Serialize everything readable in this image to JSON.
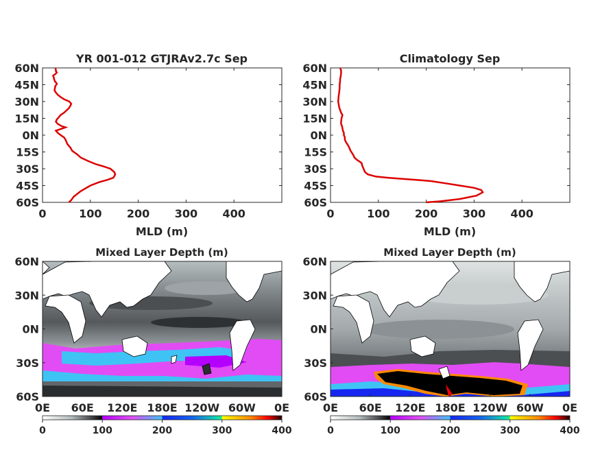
{
  "chart_data": [
    {
      "type": "line",
      "title": "YR 001-012 GTJRAv2.7c Sep",
      "xlabel": "MLD (m)",
      "ylabel": "",
      "xlim": [
        0,
        500
      ],
      "ylim": [
        -60,
        60
      ],
      "x_ticks": [
        "0",
        "100",
        "200",
        "300",
        "400"
      ],
      "y_ticks": [
        "60N",
        "45N",
        "30N",
        "15N",
        "0N",
        "15S",
        "30S",
        "45S",
        "60S"
      ],
      "color": "#dd0000",
      "series": [
        {
          "x": [
            55,
            60,
            65,
            80,
            100,
            118,
            135,
            148,
            152,
            150,
            142,
            128,
            112,
            95,
            80,
            72,
            62,
            58,
            52,
            50,
            48,
            45,
            38,
            32,
            28,
            35,
            42,
            48,
            40,
            32,
            28,
            30,
            34,
            38,
            45,
            50,
            55,
            58,
            60,
            56,
            45,
            38,
            32,
            28,
            25,
            26,
            27,
            29,
            30,
            28,
            26,
            25,
            24,
            24,
            23,
            22,
            25,
            28,
            30,
            28,
            28,
            27
          ],
          "y": [
            -60,
            -58,
            -55,
            -50,
            -45,
            -42,
            -40,
            -38,
            -35,
            -33,
            -30,
            -28,
            -26,
            -23,
            -20,
            -17,
            -14,
            -11,
            -8,
            -6,
            -4,
            -2,
            0,
            2,
            4,
            5,
            6,
            7,
            8,
            10,
            12,
            14,
            16,
            18,
            20,
            22,
            24,
            26,
            28,
            30,
            32,
            34,
            36,
            38,
            40,
            42,
            44,
            45,
            46,
            47,
            48,
            49,
            50,
            51,
            52,
            53,
            54,
            55,
            56,
            57,
            58,
            60
          ]
        }
      ]
    },
    {
      "type": "line",
      "title": "Climatology Sep",
      "xlabel": "MLD (m)",
      "ylabel": "",
      "xlim": [
        0,
        500
      ],
      "ylim": [
        -60,
        60
      ],
      "x_ticks": [
        "0",
        "100",
        "200",
        "300",
        "400"
      ],
      "y_ticks": [
        "60N",
        "45N",
        "30N",
        "15N",
        "0N",
        "15S",
        "30S",
        "45S",
        "60S"
      ],
      "color": "#dd0000",
      "series": [
        {
          "x": [
            200,
            230,
            270,
            305,
            318,
            315,
            300,
            270,
            240,
            210,
            180,
            150,
            120,
            95,
            78,
            72,
            70,
            68,
            66,
            65,
            62,
            55,
            50,
            48,
            45,
            42,
            40,
            38,
            35,
            32,
            30,
            30,
            28,
            28,
            26,
            25,
            24,
            22,
            22,
            23,
            25,
            22,
            18,
            16,
            17,
            18,
            19,
            19,
            20,
            20,
            21,
            22,
            22,
            20
          ],
          "y": [
            -60,
            -59,
            -57,
            -54,
            -51,
            -49,
            -47,
            -45,
            -43,
            -41,
            -40,
            -39,
            -38,
            -37,
            -35,
            -33,
            -31,
            -29,
            -27,
            -25,
            -24,
            -22,
            -20,
            -18,
            -16,
            -14,
            -12,
            -10,
            -8,
            -6,
            -4,
            -2,
            0,
            2,
            4,
            6,
            8,
            10,
            12,
            15,
            18,
            20,
            25,
            30,
            35,
            38,
            42,
            45,
            48,
            50,
            52,
            55,
            58,
            60
          ]
        }
      ]
    },
    {
      "type": "heatmap",
      "title": "Mixed Layer Depth (m)",
      "x_ticks": [
        "0E",
        "60E",
        "120E",
        "180E",
        "120W",
        "60W",
        "0E"
      ],
      "y_ticks": [
        "60N",
        "30N",
        "0N",
        "30S",
        "60S"
      ],
      "colorbar_ticks": [
        "0",
        "100",
        "200",
        "300",
        "400"
      ],
      "colorbar_range": [
        0,
        400
      ],
      "colormap": [
        "#ffffff",
        "#b4bcbc",
        "#4c4c50",
        "#000000",
        "#b400ff",
        "#e24cf4",
        "#3fc3f5",
        "#1626f0",
        "#12ef9d",
        "#ffff00",
        "#ff8a00",
        "#ff0000",
        "#1a0000"
      ]
    },
    {
      "type": "heatmap",
      "title": "Mixed Layer Depth (m)",
      "x_ticks": [
        "0E",
        "60E",
        "120E",
        "180E",
        "120W",
        "60W",
        "0E"
      ],
      "y_ticks": [
        "60N",
        "30N",
        "0N",
        "30S",
        "60S"
      ],
      "colorbar_ticks": [
        "0",
        "100",
        "200",
        "300",
        "400"
      ],
      "colorbar_range": [
        0,
        400
      ],
      "colormap": [
        "#ffffff",
        "#b4bcbc",
        "#4c4c50",
        "#000000",
        "#b400ff",
        "#e24cf4",
        "#3fc3f5",
        "#1626f0",
        "#12ef9d",
        "#ffff00",
        "#ff8a00",
        "#ff0000",
        "#1a0000"
      ]
    }
  ]
}
